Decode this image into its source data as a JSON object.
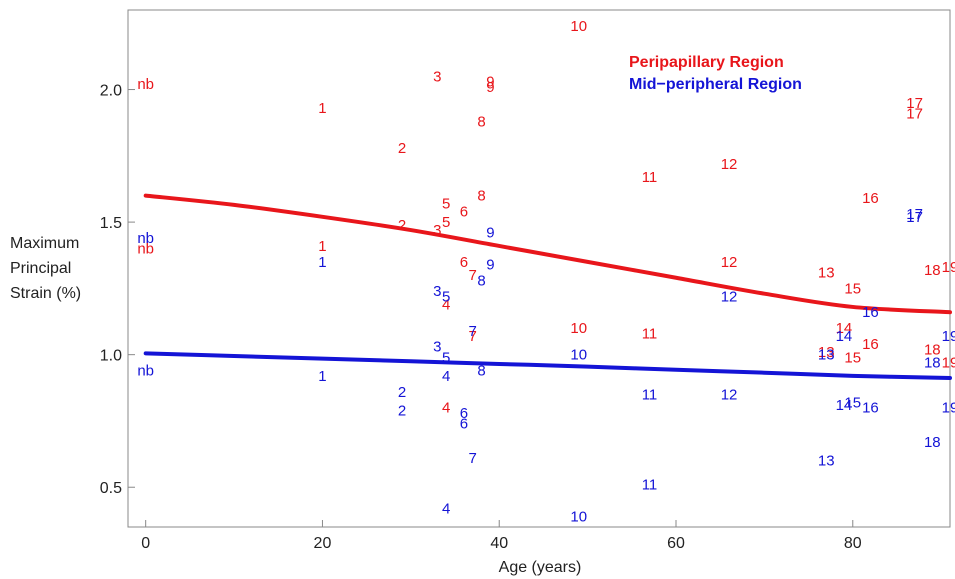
{
  "chart_data": {
    "type": "scatter",
    "title": "",
    "xlabel": "Age (years)",
    "ylabel_lines": [
      "Maximum",
      "Principal",
      "Strain (%)"
    ],
    "xlim": [
      -2,
      91
    ],
    "ylim": [
      0.35,
      2.3
    ],
    "xticks": [
      0,
      20,
      40,
      60,
      80
    ],
    "yticks": [
      0.5,
      1.0,
      1.5,
      2.0
    ],
    "ytick_labels": [
      "0.5",
      "1.0",
      "1.5",
      "2.0"
    ],
    "legend_position": "top-right",
    "series": [
      {
        "name": "Peripapillary Region",
        "color": "#e8161b",
        "points": [
          {
            "x": 0,
            "y": 2.02,
            "label": "nb"
          },
          {
            "x": 0,
            "y": 1.4,
            "label": "nb"
          },
          {
            "x": 20,
            "y": 1.93,
            "label": "1"
          },
          {
            "x": 20,
            "y": 1.41,
            "label": "1"
          },
          {
            "x": 29,
            "y": 1.78,
            "label": "2"
          },
          {
            "x": 29,
            "y": 1.49,
            "label": "2"
          },
          {
            "x": 33,
            "y": 2.05,
            "label": "3"
          },
          {
            "x": 33,
            "y": 1.47,
            "label": "3"
          },
          {
            "x": 34,
            "y": 1.19,
            "label": "4"
          },
          {
            "x": 34,
            "y": 0.8,
            "label": "4"
          },
          {
            "x": 34,
            "y": 1.57,
            "label": "5"
          },
          {
            "x": 34,
            "y": 1.5,
            "label": "5"
          },
          {
            "x": 36,
            "y": 1.54,
            "label": "6"
          },
          {
            "x": 36,
            "y": 1.35,
            "label": "6"
          },
          {
            "x": 37,
            "y": 1.3,
            "label": "7"
          },
          {
            "x": 37,
            "y": 1.07,
            "label": "7"
          },
          {
            "x": 38,
            "y": 1.88,
            "label": "8"
          },
          {
            "x": 38,
            "y": 1.6,
            "label": "8"
          },
          {
            "x": 39,
            "y": 2.03,
            "label": "9"
          },
          {
            "x": 39,
            "y": 2.01,
            "label": "9"
          },
          {
            "x": 49,
            "y": 2.24,
            "label": "10"
          },
          {
            "x": 49,
            "y": 1.1,
            "label": "10"
          },
          {
            "x": 57,
            "y": 1.67,
            "label": "11"
          },
          {
            "x": 57,
            "y": 1.08,
            "label": "11"
          },
          {
            "x": 66,
            "y": 1.72,
            "label": "12"
          },
          {
            "x": 66,
            "y": 1.35,
            "label": "12"
          },
          {
            "x": 77,
            "y": 1.31,
            "label": "13"
          },
          {
            "x": 77,
            "y": 1.01,
            "label": "13"
          },
          {
            "x": 79,
            "y": 1.1,
            "label": "14"
          },
          {
            "x": 80,
            "y": 1.25,
            "label": "15"
          },
          {
            "x": 80,
            "y": 0.99,
            "label": "15"
          },
          {
            "x": 82,
            "y": 1.59,
            "label": "16"
          },
          {
            "x": 82,
            "y": 1.04,
            "label": "16"
          },
          {
            "x": 87,
            "y": 1.95,
            "label": "17"
          },
          {
            "x": 87,
            "y": 1.91,
            "label": "17"
          },
          {
            "x": 89,
            "y": 1.32,
            "label": "18"
          },
          {
            "x": 89,
            "y": 1.02,
            "label": "18"
          },
          {
            "x": 91,
            "y": 1.33,
            "label": "19"
          },
          {
            "x": 91,
            "y": 0.97,
            "label": "19"
          }
        ],
        "fit_curve": [
          {
            "x": 0,
            "y": 1.6
          },
          {
            "x": 10,
            "y": 1.565
          },
          {
            "x": 20,
            "y": 1.52
          },
          {
            "x": 30,
            "y": 1.47
          },
          {
            "x": 40,
            "y": 1.41
          },
          {
            "x": 50,
            "y": 1.35
          },
          {
            "x": 60,
            "y": 1.29
          },
          {
            "x": 70,
            "y": 1.23
          },
          {
            "x": 80,
            "y": 1.18
          },
          {
            "x": 91,
            "y": 1.16
          }
        ]
      },
      {
        "name": "Mid−peripheral Region",
        "color": "#1414d6",
        "points": [
          {
            "x": 0,
            "y": 1.44,
            "label": "nb"
          },
          {
            "x": 0,
            "y": 0.94,
            "label": "nb"
          },
          {
            "x": 20,
            "y": 1.35,
            "label": "1"
          },
          {
            "x": 20,
            "y": 0.92,
            "label": "1"
          },
          {
            "x": 29,
            "y": 0.86,
            "label": "2"
          },
          {
            "x": 29,
            "y": 0.79,
            "label": "2"
          },
          {
            "x": 33,
            "y": 1.24,
            "label": "3"
          },
          {
            "x": 33,
            "y": 1.03,
            "label": "3"
          },
          {
            "x": 34,
            "y": 0.92,
            "label": "4"
          },
          {
            "x": 34,
            "y": 0.42,
            "label": "4"
          },
          {
            "x": 34,
            "y": 1.22,
            "label": "5"
          },
          {
            "x": 34,
            "y": 0.99,
            "label": "5"
          },
          {
            "x": 36,
            "y": 0.78,
            "label": "6"
          },
          {
            "x": 36,
            "y": 0.74,
            "label": "6"
          },
          {
            "x": 37,
            "y": 1.09,
            "label": "7"
          },
          {
            "x": 37,
            "y": 0.61,
            "label": "7"
          },
          {
            "x": 38,
            "y": 1.28,
            "label": "8"
          },
          {
            "x": 38,
            "y": 0.94,
            "label": "8"
          },
          {
            "x": 39,
            "y": 1.46,
            "label": "9"
          },
          {
            "x": 39,
            "y": 1.34,
            "label": "9"
          },
          {
            "x": 49,
            "y": 1.0,
            "label": "10"
          },
          {
            "x": 49,
            "y": 0.39,
            "label": "10"
          },
          {
            "x": 57,
            "y": 0.85,
            "label": "11"
          },
          {
            "x": 57,
            "y": 0.51,
            "label": "11"
          },
          {
            "x": 66,
            "y": 1.22,
            "label": "12"
          },
          {
            "x": 66,
            "y": 0.85,
            "label": "12"
          },
          {
            "x": 77,
            "y": 1.0,
            "label": "13"
          },
          {
            "x": 77,
            "y": 0.6,
            "label": "13"
          },
          {
            "x": 79,
            "y": 1.07,
            "label": "14"
          },
          {
            "x": 79,
            "y": 0.81,
            "label": "14"
          },
          {
            "x": 80,
            "y": 0.82,
            "label": "15"
          },
          {
            "x": 82,
            "y": 1.16,
            "label": "16"
          },
          {
            "x": 82,
            "y": 0.8,
            "label": "16"
          },
          {
            "x": 87,
            "y": 1.53,
            "label": "17"
          },
          {
            "x": 87,
            "y": 1.52,
            "label": "17"
          },
          {
            "x": 89,
            "y": 0.97,
            "label": "18"
          },
          {
            "x": 89,
            "y": 0.67,
            "label": "18"
          },
          {
            "x": 91,
            "y": 1.07,
            "label": "19"
          },
          {
            "x": 91,
            "y": 0.8,
            "label": "19"
          }
        ],
        "fit_curve": [
          {
            "x": 0,
            "y": 1.005
          },
          {
            "x": 10,
            "y": 0.995
          },
          {
            "x": 20,
            "y": 0.985
          },
          {
            "x": 30,
            "y": 0.975
          },
          {
            "x": 40,
            "y": 0.965
          },
          {
            "x": 50,
            "y": 0.955
          },
          {
            "x": 60,
            "y": 0.943
          },
          {
            "x": 70,
            "y": 0.932
          },
          {
            "x": 80,
            "y": 0.92
          },
          {
            "x": 91,
            "y": 0.912
          }
        ]
      }
    ]
  }
}
